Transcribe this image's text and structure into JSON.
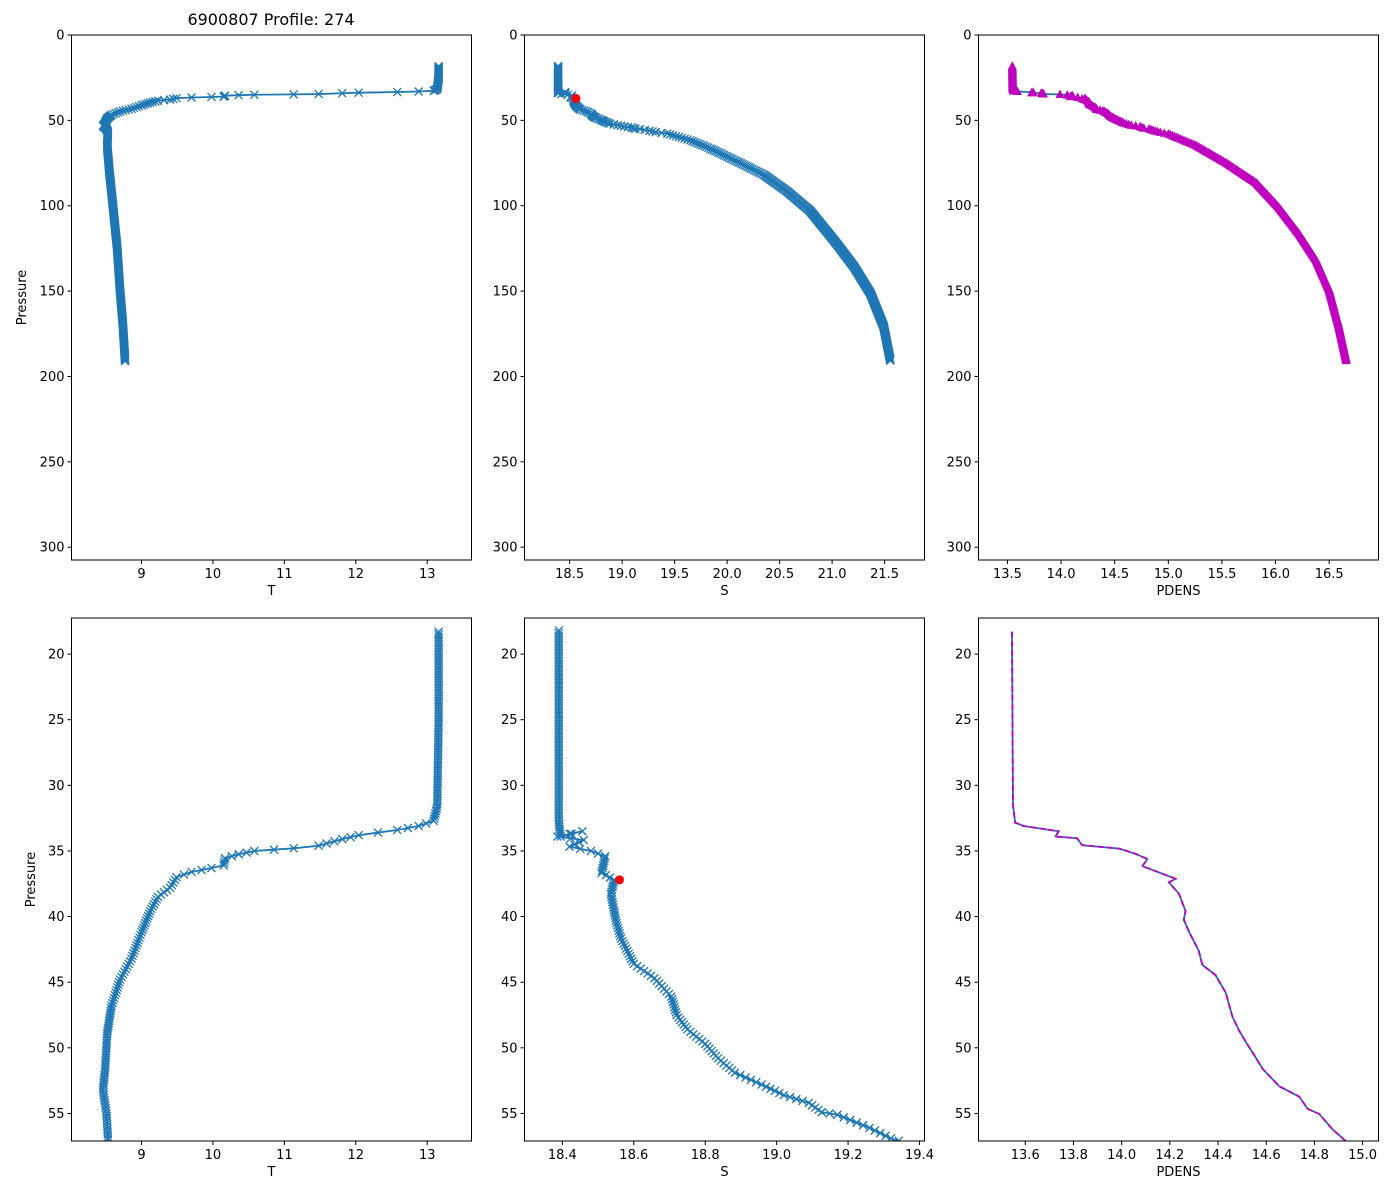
{
  "title": "6900807 Profile: 274",
  "colors": {
    "series": "#1f77b4",
    "pdens": "#bf00bf",
    "highlight": "#ff0000"
  },
  "chart_data": {
    "type": "line",
    "title": "6900807 Profile: 274",
    "ylabel": "Pressure",
    "profile": {
      "T": [
        [
          18.3,
          13.16
        ],
        [
          25,
          13.16
        ],
        [
          31.6,
          13.14
        ],
        [
          32.7,
          13.09
        ],
        [
          33.1,
          12.88
        ],
        [
          33.4,
          12.58
        ],
        [
          33.8,
          12.04
        ],
        [
          34.1,
          11.81
        ],
        [
          34.6,
          11.48
        ],
        [
          34.8,
          11.13
        ],
        [
          35.0,
          10.58
        ],
        [
          35.25,
          10.36
        ],
        [
          35.55,
          10.17
        ],
        [
          36.1,
          10.15
        ],
        [
          36.3,
          9.98
        ],
        [
          36.6,
          9.7
        ],
        [
          37.0,
          9.49
        ],
        [
          37.8,
          9.4
        ],
        [
          38.5,
          9.23
        ],
        [
          39.6,
          9.12
        ],
        [
          41.2,
          9.0
        ],
        [
          43.2,
          8.86
        ],
        [
          44.8,
          8.7
        ],
        [
          46.8,
          8.58
        ],
        [
          48.9,
          8.52
        ],
        [
          51.7,
          8.49
        ],
        [
          53.2,
          8.46
        ],
        [
          55.0,
          8.51
        ],
        [
          56.8,
          8.53
        ],
        [
          65,
          8.52
        ],
        [
          80,
          8.55
        ],
        [
          100,
          8.6
        ],
        [
          125,
          8.66
        ],
        [
          150,
          8.7
        ],
        [
          170,
          8.74
        ],
        [
          191,
          8.77
        ]
      ],
      "S": [
        [
          18.2,
          18.39
        ],
        [
          32.8,
          18.39
        ],
        [
          33.9,
          18.395
        ],
        [
          33.5,
          18.456
        ],
        [
          33.9,
          18.386
        ],
        [
          34.17,
          18.46
        ],
        [
          34.67,
          18.42
        ],
        [
          35.0,
          18.48
        ],
        [
          35.4,
          18.52
        ],
        [
          36.67,
          18.51
        ],
        [
          37.2,
          18.545
        ],
        [
          38.3,
          18.536
        ],
        [
          40.3,
          18.55
        ],
        [
          41.67,
          18.564
        ],
        [
          43.6,
          18.6
        ],
        [
          44.7,
          18.658
        ],
        [
          46.1,
          18.705
        ],
        [
          47.5,
          18.72
        ],
        [
          48.6,
          18.75
        ],
        [
          49.7,
          18.8
        ],
        [
          50.8,
          18.836
        ],
        [
          51.9,
          18.883
        ],
        [
          52.8,
          18.958
        ],
        [
          53.6,
          19.02
        ],
        [
          54.2,
          19.09
        ],
        [
          54.9,
          19.126
        ],
        [
          55.1,
          19.17
        ],
        [
          56.1,
          19.26
        ],
        [
          56.9,
          19.32
        ],
        [
          57.8,
          19.43
        ],
        [
          61.7,
          19.65
        ],
        [
          66.5,
          19.84
        ],
        [
          74.2,
          20.1
        ],
        [
          81.9,
          20.35
        ],
        [
          91.5,
          20.57
        ],
        [
          103,
          20.79
        ],
        [
          120.4,
          21.02
        ],
        [
          135.8,
          21.21
        ],
        [
          151.3,
          21.365
        ],
        [
          170.5,
          21.49
        ],
        [
          190.7,
          21.555
        ]
      ],
      "PDENS": [
        [
          18.3,
          13.545
        ],
        [
          31.5,
          13.549
        ],
        [
          32.84,
          13.558
        ],
        [
          33.1,
          13.593
        ],
        [
          33.5,
          13.739
        ],
        [
          33.9,
          13.725
        ],
        [
          34.03,
          13.815
        ],
        [
          34.56,
          13.836
        ],
        [
          34.82,
          13.99
        ],
        [
          35.22,
          14.058
        ],
        [
          35.62,
          14.107
        ],
        [
          36.15,
          14.086
        ],
        [
          37.12,
          14.224
        ],
        [
          37.39,
          14.196
        ],
        [
          38.26,
          14.238
        ],
        [
          39.58,
          14.265
        ],
        [
          40.24,
          14.258
        ],
        [
          41.17,
          14.28
        ],
        [
          42.6,
          14.32
        ],
        [
          43.68,
          14.335
        ],
        [
          44.47,
          14.39
        ],
        [
          45.8,
          14.432
        ],
        [
          47.64,
          14.46
        ],
        [
          48.7,
          14.488
        ],
        [
          49.75,
          14.522
        ],
        [
          50.55,
          14.55
        ],
        [
          51.6,
          14.585
        ],
        [
          52.93,
          14.654
        ],
        [
          53.72,
          14.737
        ],
        [
          54.65,
          14.772
        ],
        [
          55.04,
          14.82
        ],
        [
          56.23,
          14.876
        ],
        [
          57.02,
          14.925
        ],
        [
          58,
          15.0
        ],
        [
          64.5,
          15.25
        ],
        [
          75,
          15.54
        ],
        [
          86.7,
          15.82
        ],
        [
          101,
          16.03
        ],
        [
          116.6,
          16.22
        ],
        [
          132,
          16.38
        ],
        [
          149.3,
          16.5
        ],
        [
          170.5,
          16.59
        ],
        [
          190.7,
          16.66
        ]
      ]
    },
    "highlight_point": {
      "S": 18.56,
      "pressure": 37.2
    },
    "panels": [
      {
        "var": "T",
        "xlabel": "T",
        "ylabel": "Pressure",
        "marker": "x",
        "xlim": [
          8.02,
          13.62
        ],
        "ylim": [
          307.5,
          0
        ],
        "xticks": [
          "9",
          "10",
          "11",
          "12",
          "13"
        ],
        "yticks": [
          "0",
          "50",
          "100",
          "150",
          "200",
          "250",
          "300"
        ]
      },
      {
        "var": "S",
        "xlabel": "S",
        "ylabel": "",
        "marker": "x",
        "highlight": true,
        "xlim": [
          18.07,
          21.88
        ],
        "ylim": [
          307.5,
          0
        ],
        "xticks": [
          "18.5",
          "19.0",
          "19.5",
          "20.0",
          "20.5",
          "21.0",
          "21.5"
        ],
        "yticks": [
          "0",
          "50",
          "100",
          "150",
          "200",
          "250",
          "300"
        ]
      },
      {
        "var": "PDENS",
        "xlabel": "PDENS",
        "ylabel": "",
        "marker": "triangle",
        "xlim": [
          13.23,
          16.96
        ],
        "ylim": [
          307.5,
          0
        ],
        "xticks": [
          "13.5",
          "14.0",
          "14.5",
          "15.0",
          "15.5",
          "16.0",
          "16.5"
        ],
        "yticks": [
          "0",
          "50",
          "100",
          "150",
          "200",
          "250",
          "300"
        ]
      },
      {
        "var": "T",
        "xlabel": "T",
        "ylabel": "Pressure",
        "marker": "x",
        "xlim": [
          8.02,
          13.62
        ],
        "ylim": [
          57.1,
          17.25
        ],
        "xticks": [
          "9",
          "10",
          "11",
          "12",
          "13"
        ],
        "yticks": [
          "20",
          "25",
          "30",
          "35",
          "40",
          "45",
          "50",
          "55"
        ]
      },
      {
        "var": "S",
        "xlabel": "S",
        "ylabel": "",
        "marker": "x",
        "highlight": true,
        "xlim": [
          18.294,
          19.414
        ],
        "ylim": [
          57.1,
          17.25
        ],
        "xticks": [
          "18.4",
          "18.6",
          "18.8",
          "19.0",
          "19.2",
          "19.4"
        ],
        "yticks": [
          "20",
          "25",
          "30",
          "35",
          "40",
          "45",
          "50",
          "55"
        ]
      },
      {
        "var": "PDENS",
        "xlabel": "PDENS",
        "ylabel": "",
        "marker": "dashed",
        "xlim": [
          13.406,
          15.066
        ],
        "ylim": [
          57.1,
          17.25
        ],
        "xticks": [
          "13.6",
          "13.8",
          "14.0",
          "14.2",
          "14.4",
          "14.6",
          "14.8",
          "15.0"
        ],
        "yticks": [
          "20",
          "25",
          "30",
          "35",
          "40",
          "45",
          "50",
          "55"
        ]
      }
    ]
  }
}
